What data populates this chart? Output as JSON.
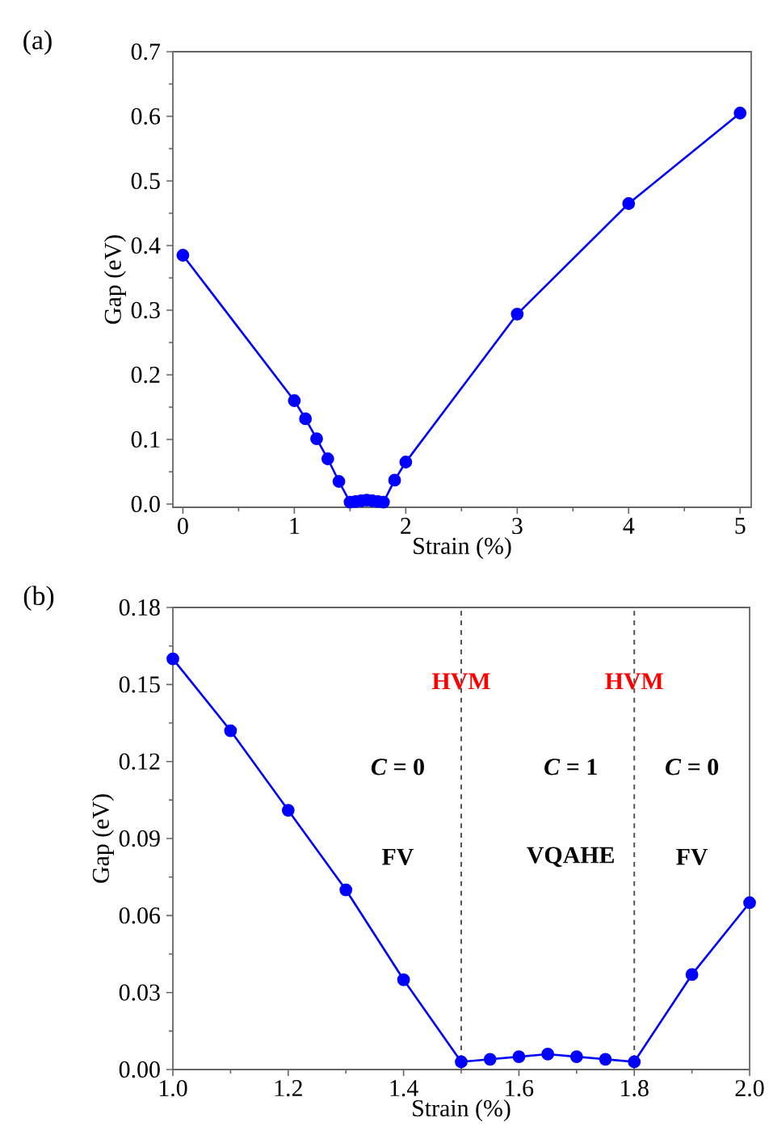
{
  "chart_data": [
    {
      "type": "line",
      "annotations": [
        "(a)"
      ],
      "xlabel": "Strain (%)",
      "ylabel": "Gap (eV)",
      "color": "#0000ff",
      "marker": "circle",
      "line_style": "solid",
      "x": [
        0,
        1,
        1.1,
        1.2,
        1.3,
        1.4,
        1.5,
        1.55,
        1.6,
        1.65,
        1.7,
        1.75,
        1.8,
        1.9,
        2,
        3,
        4,
        5
      ],
      "values": [
        0.385,
        0.16,
        0.132,
        0.101,
        0.07,
        0.035,
        0.003,
        0.004,
        0.005,
        0.006,
        0.005,
        0.004,
        0.003,
        0.037,
        0.065,
        0.294,
        0.465,
        0.605
      ],
      "xlim": [
        -0.09,
        5.1
      ],
      "ylim": [
        -0.005,
        0.7
      ],
      "xticks": [
        0,
        1,
        2,
        3,
        4,
        5
      ],
      "yticks": [
        {
          "value": 0,
          "label": "0.0"
        },
        {
          "value": 0.1,
          "label": "0.1"
        },
        {
          "value": 0.2,
          "label": "0.2"
        },
        {
          "value": 0.3,
          "label": "0.3"
        },
        {
          "value": 0.4,
          "label": "0.4"
        },
        {
          "value": 0.5,
          "label": "0.5"
        },
        {
          "value": 0.6,
          "label": "0.6"
        },
        {
          "value": 0.7,
          "label": "0.7"
        }
      ]
    },
    {
      "type": "line",
      "xlabel": "Strain (%)",
      "ylabel": "Gap (eV)",
      "color": "#0000ff",
      "marker": "circle",
      "line_style": "solid",
      "annotations": [
        "(b)",
        "*C* = 0",
        "FV",
        "*C* = 1",
        "VQAHE",
        "*C* = 0",
        "FV"
      ],
      "x": [
        1,
        1.1,
        1.2,
        1.3,
        1.4,
        1.5,
        1.55,
        1.6,
        1.65,
        1.7,
        1.75,
        1.8,
        1.9,
        2
      ],
      "values": [
        0.16,
        0.132,
        0.101,
        0.07,
        0.035,
        0.003,
        0.004,
        0.005,
        0.006,
        0.005,
        0.004,
        0.003,
        0.037,
        0.065
      ],
      "xlim": [
        1,
        2
      ],
      "ylim": [
        0,
        0.18
      ],
      "xticks": [
        {
          "value": 1,
          "label": "1.0"
        },
        {
          "value": 1.2,
          "label": "1.2"
        },
        {
          "value": 1.4,
          "label": "1.4"
        },
        {
          "value": 1.6,
          "label": "1.6"
        },
        {
          "value": 1.8,
          "label": "1.8"
        },
        {
          "value": 2,
          "label": "2.0"
        }
      ],
      "yticks": [
        {
          "value": 0,
          "label": "0.00"
        },
        {
          "value": 0.03,
          "label": "0.03"
        },
        {
          "value": 0.06,
          "label": "0.06"
        },
        {
          "value": 0.09,
          "label": "0.09"
        },
        {
          "value": 0.12,
          "label": "0.12"
        },
        {
          "value": 0.15,
          "label": "0.15"
        },
        {
          "value": 0.18,
          "label": "0.18"
        }
      ],
      "ref_lines": [
        {
          "axis": "x",
          "value": 1.5,
          "label": "HVM",
          "color": "#555555",
          "line_style": "dashed"
        },
        {
          "axis": "x",
          "value": 1.8,
          "label": "HVM",
          "color": "#555555",
          "line_style": "dashed"
        }
      ]
    }
  ]
}
